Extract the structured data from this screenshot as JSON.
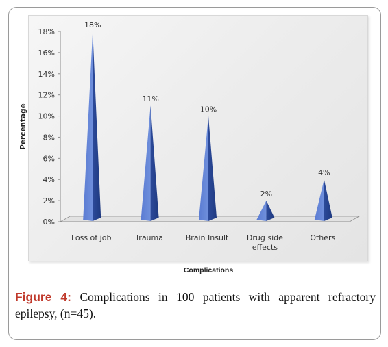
{
  "figure": {
    "label": "Figure 4:",
    "text": " Complications in 100 patients with apparent refractory epilepsy, (n=45)."
  },
  "chart_data": {
    "type": "bar",
    "style": "3d-pyramid",
    "title": "",
    "xlabel": "Complications",
    "ylabel": "Percentage",
    "ylim": [
      0,
      18
    ],
    "yticks": [
      "0%",
      "2%",
      "4%",
      "6%",
      "8%",
      "10%",
      "12%",
      "14%",
      "16%",
      "18%"
    ],
    "categories": [
      "Loss of job",
      "Trauma",
      "Brain Insult",
      "Drug side effects",
      "Others"
    ],
    "category_lines": [
      [
        "Loss of job"
      ],
      [
        "Trauma"
      ],
      [
        "Brain Insult"
      ],
      [
        "Drug side",
        "effects"
      ],
      [
        "Others"
      ]
    ],
    "values": [
      18,
      11,
      10,
      2,
      4
    ],
    "data_labels": [
      "18%",
      "11%",
      "10%",
      "2%",
      "4%"
    ],
    "grid": false,
    "legend": "none",
    "colors": {
      "bar_light": "#6f8fdc",
      "bar_dark": "#2c4a9a",
      "axis": "#8c8c8c",
      "text": "#333333"
    }
  }
}
